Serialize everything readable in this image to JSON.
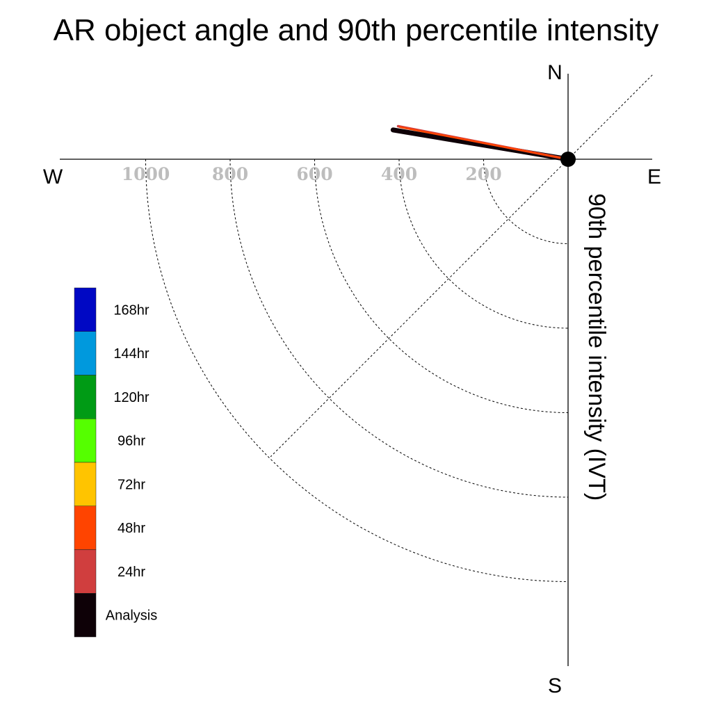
{
  "chart_data": {
    "type": "polar-line",
    "title": "AR object angle and 90th percentile intensity",
    "radial_label": "90th percentile intensity (IVT)",
    "compass": {
      "north": "N",
      "south": "S",
      "east": "E",
      "west": "W"
    },
    "radial_ticks": [
      {
        "value": 200,
        "label": "200"
      },
      {
        "value": 400,
        "label": "400"
      },
      {
        "value": 600,
        "label": "600"
      },
      {
        "value": 800,
        "label": "800"
      },
      {
        "value": 1000,
        "label": "1000"
      }
    ],
    "rmax": 1200,
    "grid": true,
    "legend": {
      "placement": "left",
      "entries": [
        {
          "label": "168hr",
          "color": "#0008c4"
        },
        {
          "label": "144hr",
          "color": "#0099dd"
        },
        {
          "label": "120hr",
          "color": "#009b15"
        },
        {
          "label": "96hr",
          "color": "#55ff00"
        },
        {
          "label": "72hr",
          "color": "#ffc400"
        },
        {
          "label": "48hr",
          "color": "#ff4400"
        },
        {
          "label": "24hr",
          "color": "#d03e3e"
        },
        {
          "label": "Analysis",
          "color": "#0e0107"
        }
      ]
    },
    "series": [
      {
        "name": "Analysis",
        "color": "#0e0107",
        "angle_deg_from_west_toward_north": 9.5,
        "intensity": 420,
        "width": 7
      },
      {
        "name": "24hr",
        "color": "#d03e3e",
        "angle_deg_from_west_toward_north": 11.0,
        "intensity": 410,
        "width": 3.5
      },
      {
        "name": "48hr",
        "color": "#ff4400",
        "angle_deg_from_west_toward_north": 10.8,
        "intensity": 405,
        "width": 2.5
      }
    ]
  }
}
